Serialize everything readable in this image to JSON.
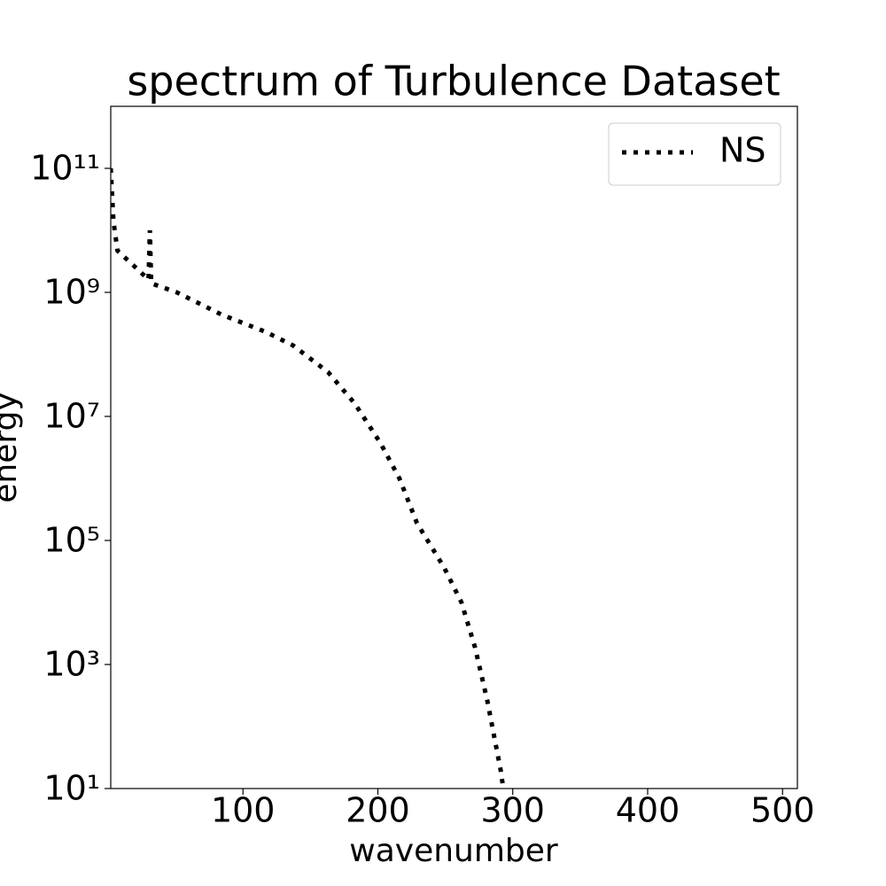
{
  "chart_data": {
    "type": "line",
    "title": "spectrum of Turbulence Dataset",
    "xlabel": "wavenumber",
    "ylabel": "energy",
    "yscale": "log",
    "x": [
      2,
      4,
      7,
      19,
      30,
      31,
      32,
      51,
      84,
      117,
      137,
      163,
      183,
      202,
      216,
      229,
      249,
      262,
      272,
      281,
      291,
      293,
      300
    ],
    "series": [
      {
        "name": "NS",
        "color": "#000000",
        "linestyle": "dotted",
        "values": [
          100000000000,
          14000000000,
          4700000000,
          2700000000,
          1600000000,
          10000000000,
          1400000000,
          1000000000,
          440000000,
          230000000,
          140000000,
          52000000,
          16000000,
          3700000,
          1000000,
          190000,
          37000,
          10000,
          1900,
          270,
          20,
          10,
          1
        ]
      }
    ],
    "xlim": [
      2,
      511
    ],
    "ylim": [
      10,
      1000000000000
    ],
    "xticks": [
      100,
      200,
      300,
      400,
      500
    ],
    "yticks": [
      {
        "value": 10,
        "label": "10¹"
      },
      {
        "value": 1000,
        "label": "10³"
      },
      {
        "value": 100000,
        "label": "10⁵"
      },
      {
        "value": 10000000,
        "label": "10⁷"
      },
      {
        "value": 1000000000,
        "label": "10⁹"
      },
      {
        "value": 100000000000,
        "label": "10¹¹"
      }
    ],
    "legend": "upper right"
  }
}
